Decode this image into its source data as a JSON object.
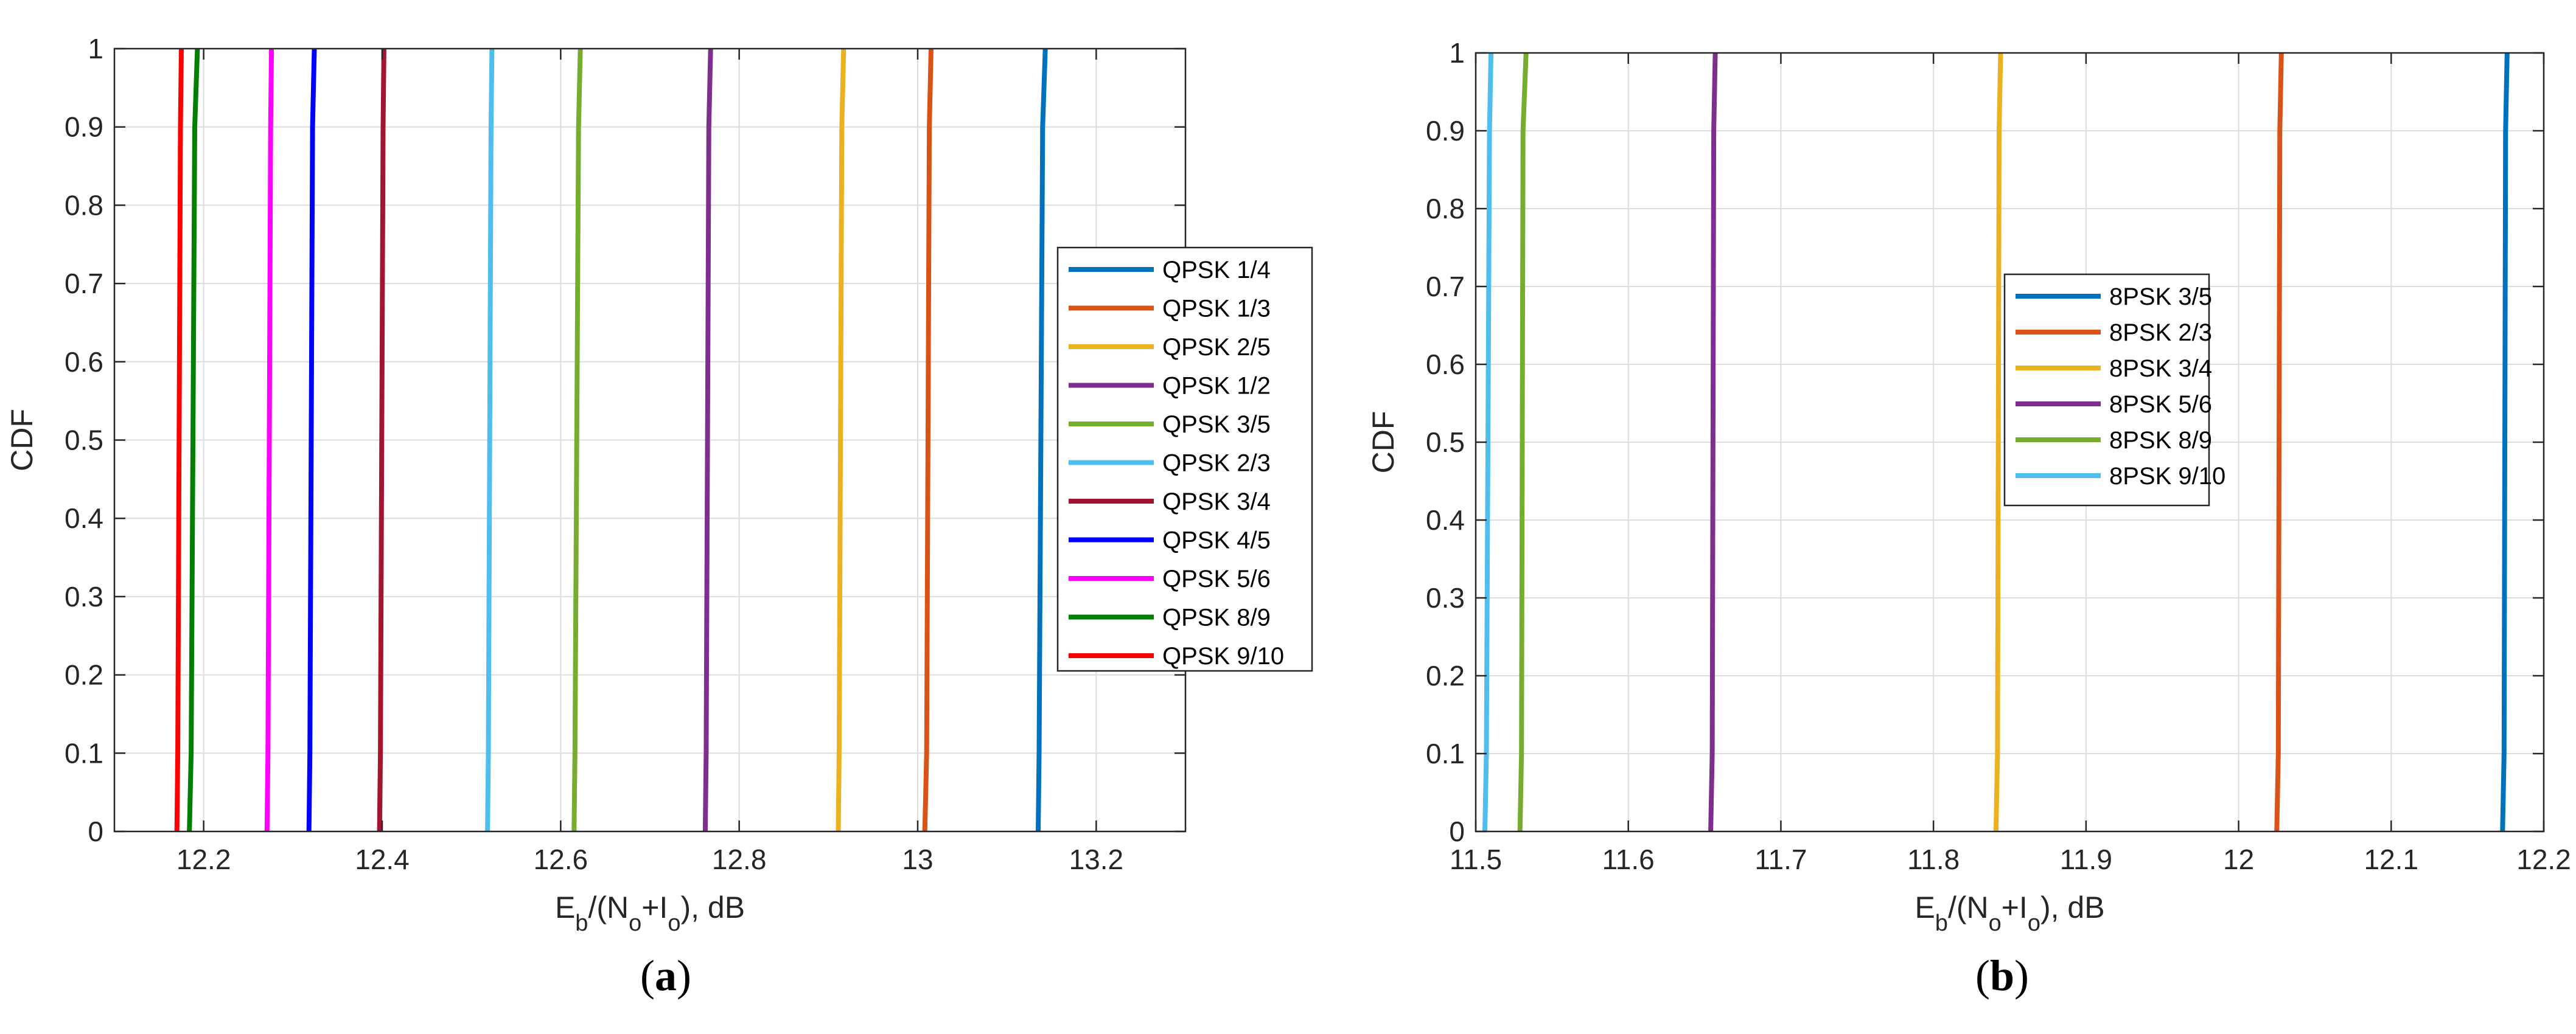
{
  "chart_data": [
    {
      "type": "line",
      "panel_label": "a",
      "xlabel": "E_b/(N_o+I_o), dB",
      "ylabel": "CDF",
      "xlim": [
        12.1,
        13.3
      ],
      "ylim": [
        0,
        1
      ],
      "xticks": [
        12.2,
        12.4,
        12.6,
        12.8,
        13,
        13.2
      ],
      "yticks": [
        0,
        0.1,
        0.2,
        0.3,
        0.4,
        0.5,
        0.6,
        0.7,
        0.8,
        0.9,
        1
      ],
      "grid": true,
      "legend_position": "right",
      "series": [
        {
          "name": "QPSK 1/4",
          "color": "#0072BD",
          "x": [
            13.135,
            13.136,
            13.14,
            13.143
          ],
          "y": [
            0,
            0.1,
            0.9,
            1
          ]
        },
        {
          "name": "QPSK 1/3",
          "color": "#D95319",
          "x": [
            13.008,
            13.01,
            13.013,
            13.015
          ],
          "y": [
            0,
            0.1,
            0.9,
            1
          ]
        },
        {
          "name": "QPSK 2/5",
          "color": "#EDB120",
          "x": [
            12.911,
            12.912,
            12.915,
            12.917
          ],
          "y": [
            0,
            0.1,
            0.9,
            1
          ]
        },
        {
          "name": "QPSK 1/2",
          "color": "#7E2F8E",
          "x": [
            12.762,
            12.763,
            12.766,
            12.768
          ],
          "y": [
            0,
            0.1,
            0.9,
            1
          ]
        },
        {
          "name": "QPSK 3/5",
          "color": "#77AC30",
          "x": [
            12.615,
            12.616,
            12.62,
            12.622
          ],
          "y": [
            0,
            0.1,
            0.9,
            1
          ]
        },
        {
          "name": "QPSK 2/3",
          "color": "#4DBEEE",
          "x": [
            12.518,
            12.519,
            12.522,
            12.523
          ],
          "y": [
            0,
            0.1,
            0.9,
            1
          ]
        },
        {
          "name": "QPSK 3/4",
          "color": "#A2142F",
          "x": [
            12.397,
            12.398,
            12.401,
            12.402
          ],
          "y": [
            0,
            0.1,
            0.9,
            1
          ]
        },
        {
          "name": "QPSK 4/5",
          "color": "#0000FF",
          "x": [
            12.318,
            12.319,
            12.322,
            12.324
          ],
          "y": [
            0,
            0.1,
            0.9,
            1
          ]
        },
        {
          "name": "QPSK 5/6",
          "color": "#FF00FF",
          "x": [
            12.271,
            12.272,
            12.275,
            12.276
          ],
          "y": [
            0,
            0.1,
            0.9,
            1
          ]
        },
        {
          "name": "QPSK 8/9",
          "color": "#007F00",
          "x": [
            12.184,
            12.186,
            12.19,
            12.193
          ],
          "y": [
            0,
            0.1,
            0.9,
            1
          ]
        },
        {
          "name": "QPSK 9/10",
          "color": "#FF0000",
          "x": [
            12.17,
            12.171,
            12.174,
            12.175
          ],
          "y": [
            0,
            0.1,
            0.9,
            1
          ]
        }
      ]
    },
    {
      "type": "line",
      "panel_label": "b",
      "xlabel": "E_b/(N_o+I_o), dB",
      "ylabel": "CDF",
      "xlim": [
        11.5,
        12.2
      ],
      "ylim": [
        0,
        1
      ],
      "xticks": [
        11.5,
        11.6,
        11.7,
        11.8,
        11.9,
        12,
        12.1,
        12.2
      ],
      "yticks": [
        0,
        0.1,
        0.2,
        0.3,
        0.4,
        0.5,
        0.6,
        0.7,
        0.8,
        0.9,
        1
      ],
      "grid": true,
      "legend_position": "center",
      "series": [
        {
          "name": "8PSK 3/5",
          "color": "#0072BD",
          "x": [
            12.173,
            12.174,
            12.175,
            12.176
          ],
          "y": [
            0,
            0.1,
            0.9,
            1
          ]
        },
        {
          "name": "8PSK 2/3",
          "color": "#D95319",
          "x": [
            12.025,
            12.026,
            12.027,
            12.028
          ],
          "y": [
            0,
            0.1,
            0.9,
            1
          ]
        },
        {
          "name": "8PSK 3/4",
          "color": "#EDB120",
          "x": [
            11.841,
            11.842,
            11.843,
            11.844
          ],
          "y": [
            0,
            0.1,
            0.9,
            1
          ]
        },
        {
          "name": "8PSK 5/6",
          "color": "#7E2F8E",
          "x": [
            11.654,
            11.655,
            11.656,
            11.657
          ],
          "y": [
            0,
            0.1,
            0.9,
            1
          ]
        },
        {
          "name": "8PSK 8/9",
          "color": "#77AC30",
          "x": [
            11.529,
            11.53,
            11.531,
            11.533
          ],
          "y": [
            0,
            0.1,
            0.9,
            1
          ]
        },
        {
          "name": "8PSK 9/10",
          "color": "#4DBEEE",
          "x": [
            11.506,
            11.507,
            11.509,
            11.51
          ],
          "y": [
            0,
            0.1,
            0.9,
            1
          ]
        }
      ]
    }
  ]
}
